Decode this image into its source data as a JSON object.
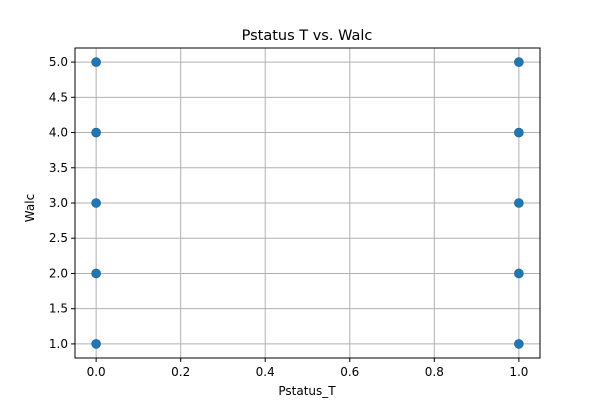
{
  "chart_data": {
    "type": "scatter",
    "title": "Pstatus T vs. Walc",
    "xlabel": "Pstatus_T",
    "ylabel": "Walc",
    "xlim": [
      -0.05,
      1.05
    ],
    "ylim": [
      0.8,
      5.2
    ],
    "xticks": [
      0.0,
      0.2,
      0.4,
      0.6,
      0.8,
      1.0
    ],
    "xtick_labels": [
      "0.0",
      "0.2",
      "0.4",
      "0.6",
      "0.8",
      "1.0"
    ],
    "yticks": [
      1.0,
      1.5,
      2.0,
      2.5,
      3.0,
      3.5,
      4.0,
      4.5,
      5.0
    ],
    "ytick_labels": [
      "1.0",
      "1.5",
      "2.0",
      "2.5",
      "3.0",
      "3.5",
      "4.0",
      "4.5",
      "5.0"
    ],
    "grid": true,
    "point_color": "#1f77b4",
    "points": [
      {
        "x": 0,
        "y": 1
      },
      {
        "x": 0,
        "y": 2
      },
      {
        "x": 0,
        "y": 3
      },
      {
        "x": 0,
        "y": 4
      },
      {
        "x": 0,
        "y": 5
      },
      {
        "x": 1,
        "y": 1
      },
      {
        "x": 1,
        "y": 2
      },
      {
        "x": 1,
        "y": 3
      },
      {
        "x": 1,
        "y": 4
      },
      {
        "x": 1,
        "y": 5
      }
    ]
  }
}
